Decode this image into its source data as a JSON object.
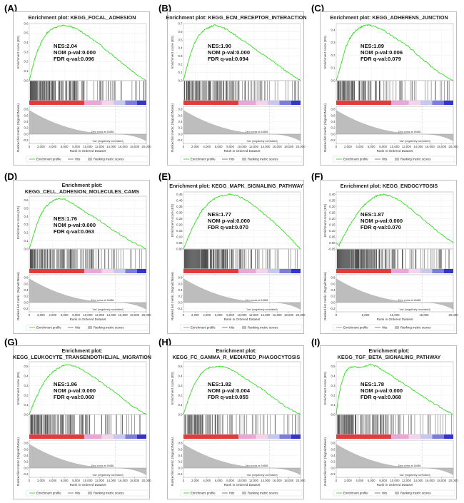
{
  "colors": {
    "enrichment_line": "#33dd22",
    "hits": "#000000",
    "positive": "#e23b3b",
    "pink": "#e9a6d7",
    "negative": "#3434c8",
    "metric_fill": "#bdbdbd",
    "pos_label": "#cc2222",
    "neg_label": "#2233cc"
  },
  "common": {
    "xlabel": "Rank in Ordered Dataset",
    "ylabel_es": "Enrichment score (ES)",
    "ylabel_metric": "Ranked list metric (Signal2Noise)",
    "pos_label": "'high' (positively correlated)",
    "neg_label": "'low' (negatively correlated)",
    "zero_cross": "Zero cross at 14688",
    "legend": {
      "enrichment": "Enrichment profile",
      "hits": "Hits",
      "ranking": "Ranking metric scores"
    },
    "metric_ticks": [
      "0.8",
      "0.6",
      "0.4",
      "0.2",
      "0.0",
      "-0.2"
    ],
    "x_ticks_2k": [
      "0",
      "2,000",
      "4,000",
      "6,000",
      "8,000",
      "10,000",
      "12,000",
      "14,000",
      "16,000",
      "18,000",
      "20,000"
    ],
    "x_ticks_5k": [
      "0",
      "5,000",
      "10,000",
      "15,000",
      "20,000"
    ]
  },
  "chart_data": [
    {
      "type": "line",
      "letter": "(A)",
      "title": [
        "Enrichment plot: KEGG_FOCAL_ADHESION"
      ],
      "nes": "NES:2.04",
      "nom": "NOM p-val:0.000",
      "fdr": "FDR q-val:0.096",
      "y_ticks": [
        "0.6",
        "0.5",
        "0.4",
        "0.3",
        "0.2",
        "0.1",
        "0.0"
      ],
      "ylim": [
        0,
        0.6
      ],
      "x_tick_mode": "2k",
      "xlim": [
        0,
        20000
      ],
      "es_curve": [
        [
          0,
          0
        ],
        [
          400,
          0.1
        ],
        [
          900,
          0.22
        ],
        [
          1500,
          0.33
        ],
        [
          2200,
          0.42
        ],
        [
          3000,
          0.5
        ],
        [
          4000,
          0.55
        ],
        [
          5000,
          0.57
        ],
        [
          5800,
          0.58
        ],
        [
          7000,
          0.57
        ],
        [
          8500,
          0.53
        ],
        [
          10000,
          0.47
        ],
        [
          12000,
          0.38
        ],
        [
          14000,
          0.28
        ],
        [
          16000,
          0.18
        ],
        [
          18000,
          0.08
        ],
        [
          20000,
          0
        ]
      ],
      "hit_density": 0.5
    },
    {
      "type": "line",
      "letter": "(B)",
      "title": [
        "Enrichment plot: KEGG_ECM_RECEPTOR_INTERACTION"
      ],
      "nes": "NES:1.90",
      "nom": "NOM p-val:0.000",
      "fdr": "FDR q-val:0.094",
      "y_ticks": [
        "0.7",
        "0.6",
        "0.5",
        "0.4",
        "0.3",
        "0.2",
        "0.1",
        "0.0"
      ],
      "ylim": [
        0,
        0.7
      ],
      "x_tick_mode": "2k",
      "xlim": [
        0,
        20000
      ],
      "es_curve": [
        [
          0,
          0
        ],
        [
          500,
          0.15
        ],
        [
          1100,
          0.3
        ],
        [
          1800,
          0.45
        ],
        [
          2600,
          0.55
        ],
        [
          3500,
          0.62
        ],
        [
          4500,
          0.66
        ],
        [
          5400,
          0.68
        ],
        [
          6500,
          0.66
        ],
        [
          8000,
          0.6
        ],
        [
          10000,
          0.5
        ],
        [
          12000,
          0.4
        ],
        [
          14000,
          0.3
        ],
        [
          16000,
          0.2
        ],
        [
          18000,
          0.09
        ],
        [
          20000,
          0
        ]
      ],
      "hit_density": 0.4
    },
    {
      "type": "line",
      "letter": "(C)",
      "title": [
        "Enrichment plot: KEGG_ADHERENS_JUNCTION"
      ],
      "nes": "NES:1.89",
      "nom": "NOM p-val:0.006",
      "fdr": "FDR q-val:0.079",
      "y_ticks": [
        "0.4",
        "0.3",
        "0.2",
        "0.1",
        "0.0"
      ],
      "ylim": [
        0,
        0.45
      ],
      "x_tick_mode": "2k",
      "xlim": [
        0,
        20000
      ],
      "es_curve": [
        [
          0,
          0
        ],
        [
          400,
          0.06
        ],
        [
          1000,
          0.16
        ],
        [
          1600,
          0.26
        ],
        [
          2300,
          0.33
        ],
        [
          3000,
          0.38
        ],
        [
          3800,
          0.41
        ],
        [
          4600,
          0.43
        ],
        [
          5500,
          0.44
        ],
        [
          6500,
          0.43
        ],
        [
          8000,
          0.4
        ],
        [
          10000,
          0.34
        ],
        [
          12000,
          0.28
        ],
        [
          14000,
          0.2
        ],
        [
          16000,
          0.12
        ],
        [
          18000,
          0.05
        ],
        [
          20000,
          0
        ]
      ],
      "hit_density": 0.35
    },
    {
      "type": "line",
      "letter": "(D)",
      "title": [
        "Enrichment plot:",
        "KEGG_CELL_ADHESION_MOLECULES_CAMS"
      ],
      "nes": "NES:1.76",
      "nom": "NOM p-val:0.000",
      "fdr": "FDR q-val:0.063",
      "y_ticks": [
        "0.6",
        "0.5",
        "0.4",
        "0.3",
        "0.2",
        "0.1",
        "0.0"
      ],
      "ylim": [
        0,
        0.65
      ],
      "x_tick_mode": "2k",
      "xlim": [
        0,
        20000
      ],
      "es_curve": [
        [
          0,
          0
        ],
        [
          500,
          0.12
        ],
        [
          1100,
          0.26
        ],
        [
          1800,
          0.4
        ],
        [
          2600,
          0.5
        ],
        [
          3400,
          0.56
        ],
        [
          4200,
          0.6
        ],
        [
          5000,
          0.62
        ],
        [
          6000,
          0.61
        ],
        [
          7500,
          0.56
        ],
        [
          9500,
          0.46
        ],
        [
          11500,
          0.37
        ],
        [
          13500,
          0.27
        ],
        [
          15500,
          0.18
        ],
        [
          17500,
          0.09
        ],
        [
          20000,
          0
        ]
      ],
      "hit_density": 0.4
    },
    {
      "type": "line",
      "letter": "(E)",
      "title": [
        "Enrichment plot: KEGG_MAPK_SIGNALING_PATHWAY"
      ],
      "nes": "NES:1.77",
      "nom": "NOM p-val:0.000",
      "fdr": "FDR q-val:0.070",
      "y_ticks": [
        "0.45",
        "0.40",
        "0.35",
        "0.30",
        "0.25",
        "0.20",
        "0.15",
        "0.10",
        "0.05",
        "0.00"
      ],
      "ylim": [
        0,
        0.47
      ],
      "x_tick_mode": "2k",
      "xlim": [
        0,
        20000
      ],
      "es_curve": [
        [
          0,
          0
        ],
        [
          600,
          0.07
        ],
        [
          1300,
          0.15
        ],
        [
          2200,
          0.24
        ],
        [
          3200,
          0.32
        ],
        [
          4300,
          0.38
        ],
        [
          5500,
          0.42
        ],
        [
          6700,
          0.44
        ],
        [
          7800,
          0.45
        ],
        [
          9000,
          0.44
        ],
        [
          10500,
          0.41
        ],
        [
          12500,
          0.34
        ],
        [
          14500,
          0.26
        ],
        [
          16500,
          0.17
        ],
        [
          18500,
          0.08
        ],
        [
          20000,
          0
        ]
      ],
      "hit_density": 0.7
    },
    {
      "type": "line",
      "letter": "(F)",
      "title": [
        "Enrichment plot: KEGG_ENDOCYTOSIS"
      ],
      "nes": "NES:1.87",
      "nom": "NOM p-val:0.000",
      "fdr": "FDR q-val:0.070",
      "y_ticks": [
        "0.40",
        "0.35",
        "0.30",
        "0.25",
        "0.20",
        "0.15",
        "0.10",
        "0.05",
        "0.00",
        "-0.05"
      ],
      "ylim": [
        -0.05,
        0.42
      ],
      "x_tick_mode": "5k",
      "xlim": [
        0,
        20000
      ],
      "es_curve": [
        [
          0,
          0
        ],
        [
          500,
          -0.02
        ],
        [
          1200,
          0.05
        ],
        [
          2000,
          0.12
        ],
        [
          3000,
          0.2
        ],
        [
          4000,
          0.27
        ],
        [
          5000,
          0.32
        ],
        [
          6000,
          0.36
        ],
        [
          7000,
          0.39
        ],
        [
          8000,
          0.4
        ],
        [
          9000,
          0.39
        ],
        [
          10500,
          0.36
        ],
        [
          12500,
          0.29
        ],
        [
          14500,
          0.21
        ],
        [
          16500,
          0.13
        ],
        [
          18500,
          0.05
        ],
        [
          20000,
          0
        ]
      ],
      "hit_density": 0.65
    },
    {
      "type": "line",
      "letter": "(G)",
      "title": [
        "Enrichment plot:",
        "KEGG_LEUKOCYTE_TRANSENDOTHELIAL_MIGRATION"
      ],
      "nes": "NES:1.86",
      "nom": "NOM p-val:0.000",
      "fdr": "FDR q-val:0.060",
      "y_ticks": [
        "0.5",
        "0.4",
        "0.3",
        "0.2",
        "0.1",
        "0.0"
      ],
      "ylim": [
        0,
        0.55
      ],
      "x_tick_mode": "2k",
      "xlim": [
        0,
        20000
      ],
      "es_curve": [
        [
          0,
          0
        ],
        [
          500,
          0.08
        ],
        [
          1200,
          0.18
        ],
        [
          2000,
          0.28
        ],
        [
          2900,
          0.37
        ],
        [
          3900,
          0.44
        ],
        [
          4900,
          0.48
        ],
        [
          5800,
          0.51
        ],
        [
          6800,
          0.52
        ],
        [
          8000,
          0.5
        ],
        [
          9500,
          0.45
        ],
        [
          11500,
          0.37
        ],
        [
          13500,
          0.28
        ],
        [
          15500,
          0.19
        ],
        [
          17500,
          0.09
        ],
        [
          20000,
          0
        ]
      ],
      "hit_density": 0.45
    },
    {
      "type": "line",
      "letter": "(H)",
      "title": [
        "Enrichment plot:",
        "KEGG_FC_GAMMA_R_MEDIATED_PHAGOCYTOSIS"
      ],
      "nes": "NES:1.82",
      "nom": "NOM p-val:0.004",
      "fdr": "FDR q-val:0.055",
      "y_ticks": [
        "0.5",
        "0.4",
        "0.3",
        "0.2",
        "0.1",
        "0.0"
      ],
      "ylim": [
        0,
        0.55
      ],
      "x_tick_mode": "2k",
      "xlim": [
        0,
        20000
      ],
      "es_curve": [
        [
          0,
          0
        ],
        [
          500,
          0.1
        ],
        [
          1200,
          0.22
        ],
        [
          2000,
          0.33
        ],
        [
          2800,
          0.41
        ],
        [
          3600,
          0.46
        ],
        [
          4500,
          0.49
        ],
        [
          5500,
          0.5
        ],
        [
          6500,
          0.5
        ],
        [
          7800,
          0.48
        ],
        [
          9500,
          0.42
        ],
        [
          11500,
          0.34
        ],
        [
          13500,
          0.26
        ],
        [
          15500,
          0.17
        ],
        [
          17500,
          0.08
        ],
        [
          20000,
          0
        ]
      ],
      "hit_density": 0.45
    },
    {
      "type": "line",
      "letter": "(I)",
      "title": [
        "Enrichment plot:",
        "KEGG_TGF_BETA_SIGNALING_PATHWAY"
      ],
      "nes": "NES:1.78",
      "nom": "NOM p-val:0.000",
      "fdr": "FDR q-val:0.068",
      "y_ticks": [
        "0.5",
        "0.4",
        "0.3",
        "0.2",
        "0.1",
        "0.0"
      ],
      "ylim": [
        0,
        0.55
      ],
      "x_tick_mode": "2k",
      "xlim": [
        0,
        20000
      ],
      "es_curve": [
        [
          0,
          0
        ],
        [
          300,
          0.15
        ],
        [
          800,
          0.3
        ],
        [
          1400,
          0.42
        ],
        [
          2000,
          0.48
        ],
        [
          2800,
          0.5
        ],
        [
          3800,
          0.49
        ],
        [
          4800,
          0.5
        ],
        [
          5800,
          0.52
        ],
        [
          7000,
          0.5
        ],
        [
          8500,
          0.44
        ],
        [
          10500,
          0.36
        ],
        [
          12500,
          0.28
        ],
        [
          14500,
          0.2
        ],
        [
          16500,
          0.12
        ],
        [
          18500,
          0.05
        ],
        [
          20000,
          0
        ]
      ],
      "hit_density": 0.4
    }
  ]
}
